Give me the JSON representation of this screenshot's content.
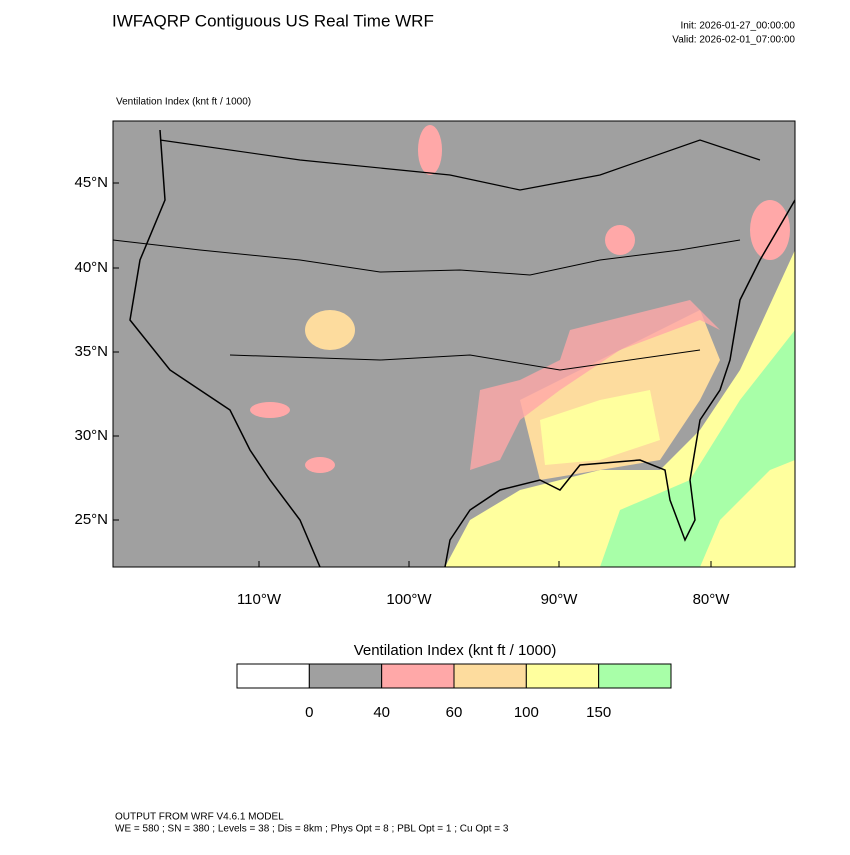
{
  "header": {
    "title": "IWFAQRP Contiguous US Real Time WRF",
    "init": "Init: 2026-01-27_00:00:00",
    "valid": "Valid: 2026-02-01_07:00:00"
  },
  "map": {
    "field_label": "Ventilation Index   (knt ft / 1000)",
    "lat_labels": [
      "45°N",
      "40°N",
      "35°N",
      "30°N",
      "25°N"
    ],
    "lon_labels": [
      "110°W",
      "100°W",
      "90°W",
      "80°W"
    ]
  },
  "colorbar": {
    "title": "Ventilation Index  (knt ft / 1000)",
    "colors": [
      "#ffffff",
      "#a0a0a0",
      "#ffa8a8",
      "#fddc9e",
      "#ffff9e",
      "#a8ffa8"
    ],
    "ticks": [
      0,
      40,
      60,
      100,
      150
    ]
  },
  "footer": {
    "line1": "OUTPUT FROM WRF V4.6.1 MODEL",
    "line2": "WE = 580 ; SN = 380 ; Levels = 38 ; Dis = 8km ; Phys Opt = 8 ; PBL Opt = 1 ; Cu Opt = 3"
  }
}
